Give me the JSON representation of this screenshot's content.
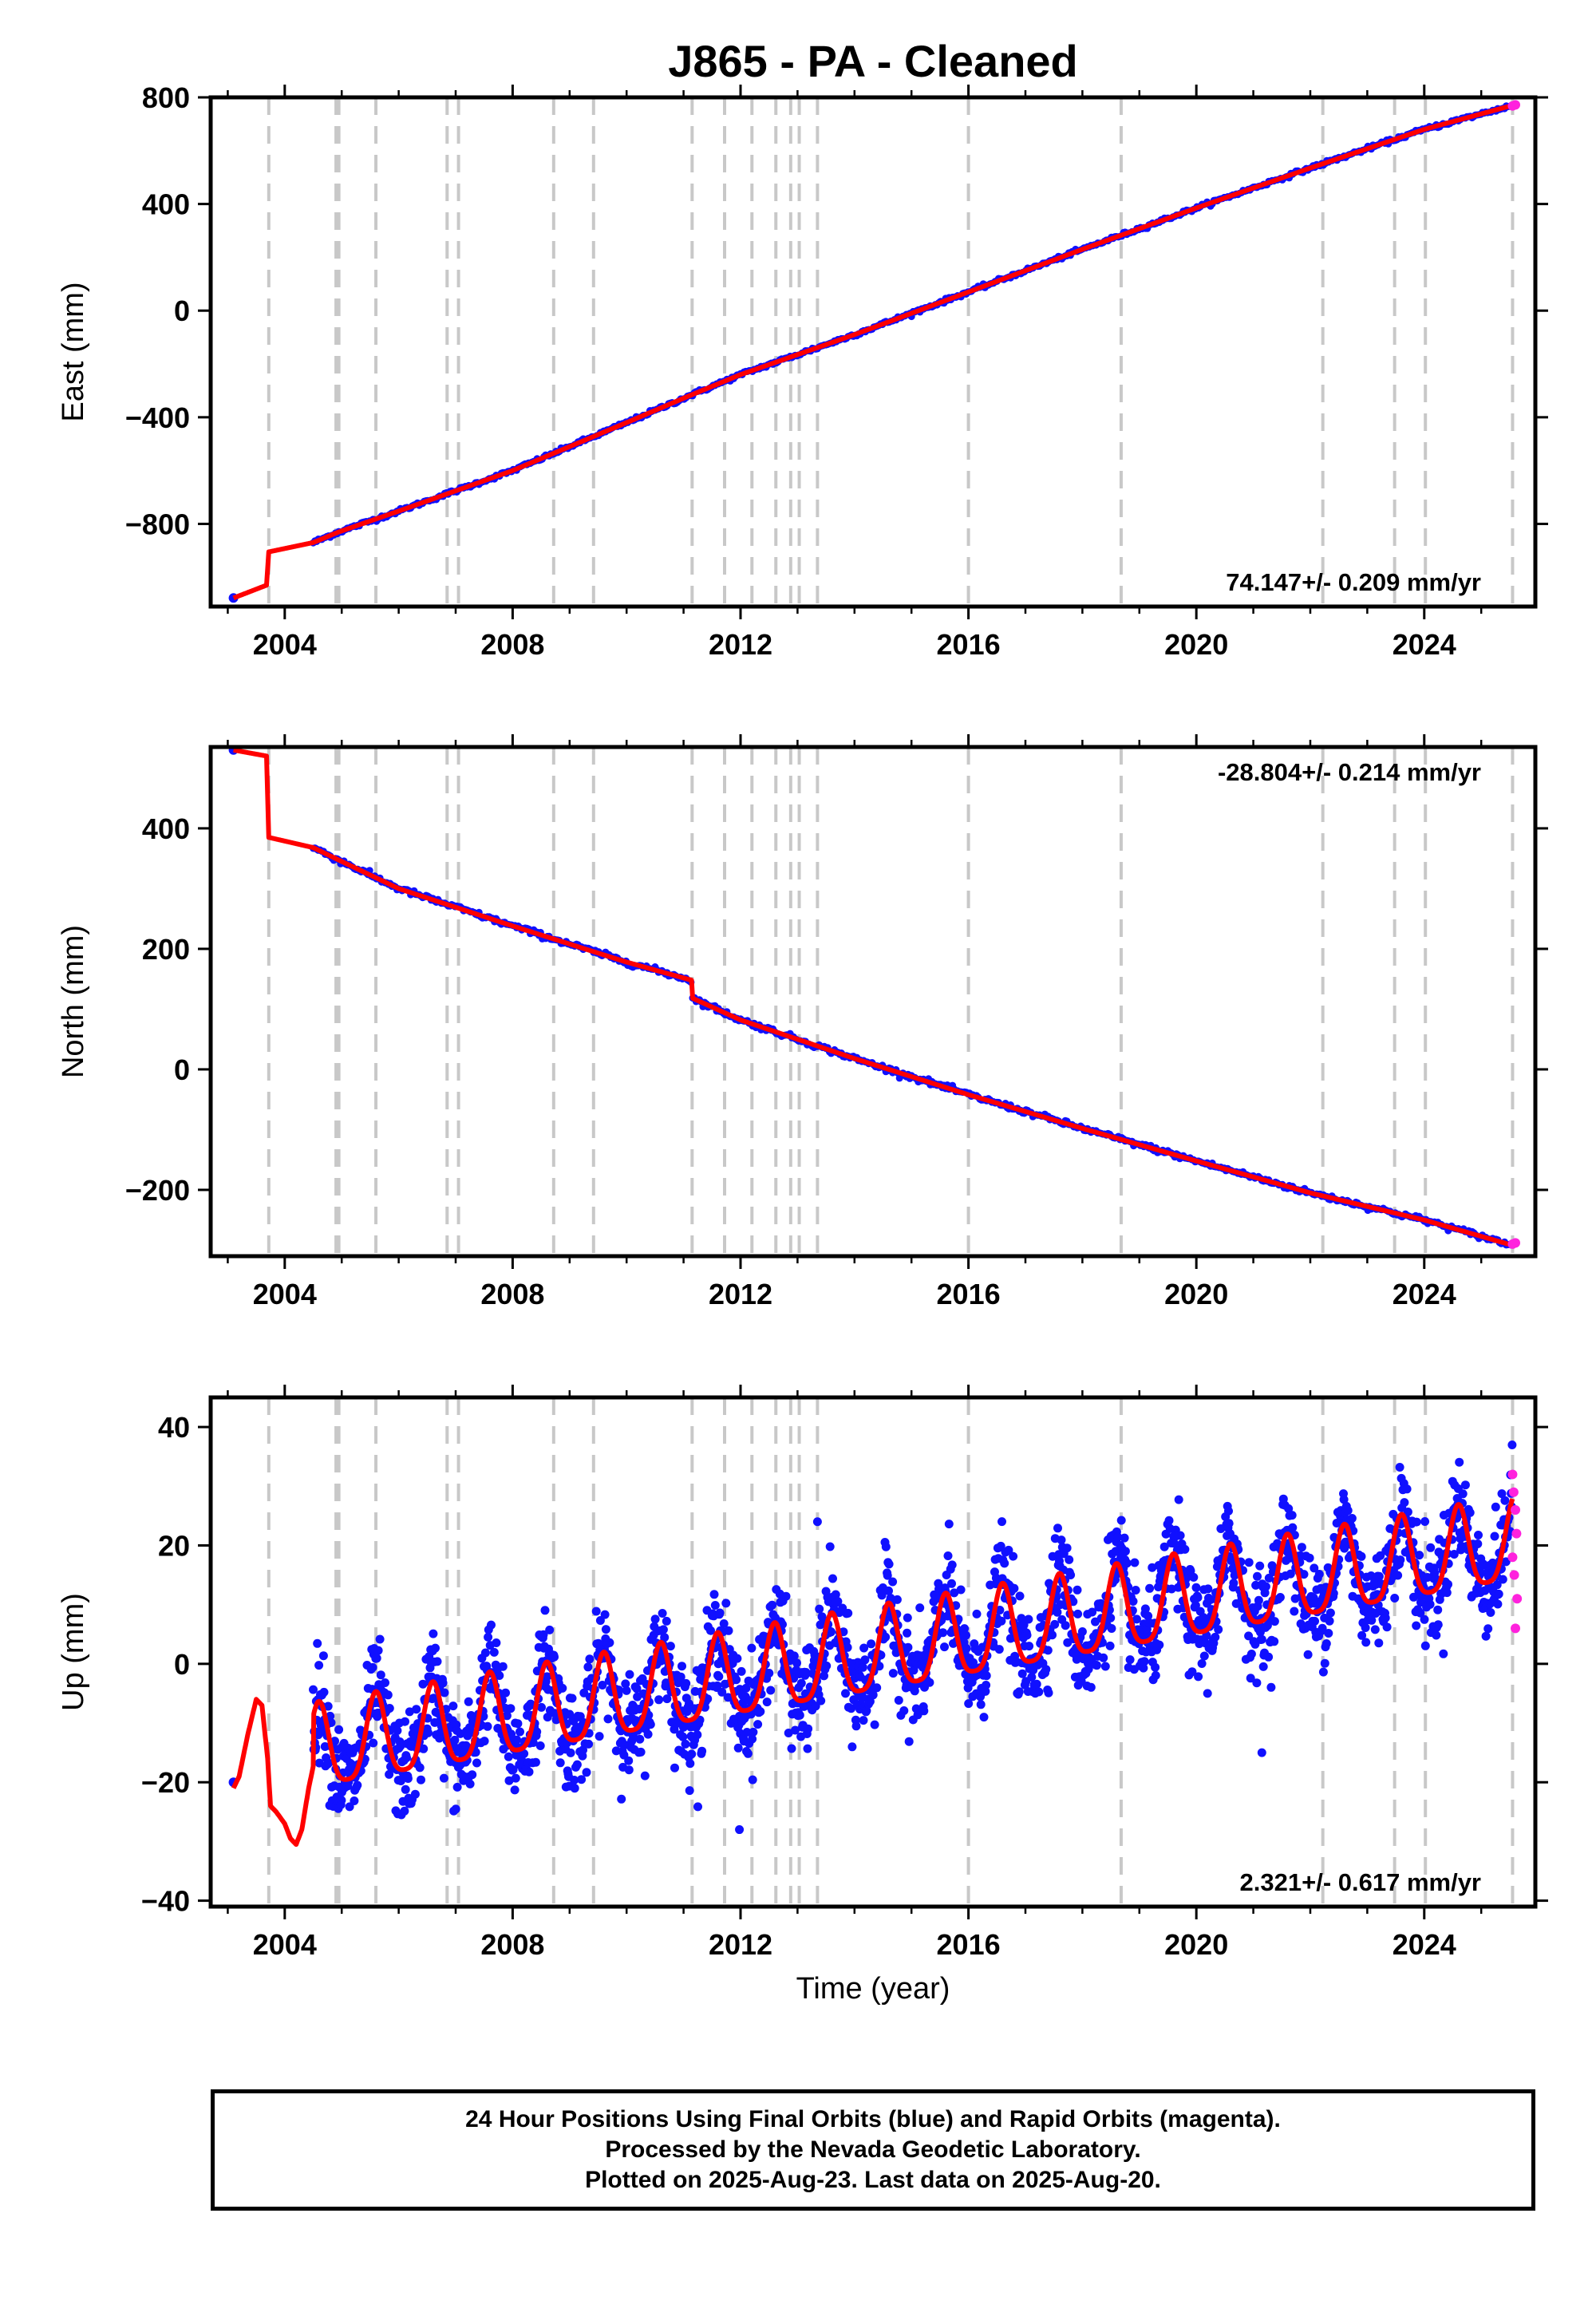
{
  "title": "J865  - PA - Cleaned",
  "colors": {
    "final_orbits": "#1010ff",
    "rapid_orbits": "#ff22dd",
    "model": "#ff0000",
    "dashed_lines": "#c8c8c8",
    "axes": "#000000"
  },
  "x_axis": {
    "label": "Time (year)",
    "range": [
      2002.7,
      2025.95
    ],
    "ticks": [
      2004,
      2008,
      2012,
      2016,
      2020,
      2024
    ],
    "tick_labels": [
      "2004",
      "2008",
      "2012",
      "2016",
      "2020",
      "2024"
    ]
  },
  "event_lines": [
    2003.72,
    2004.9,
    2004.95,
    2005.6,
    2006.85,
    2007.05,
    2008.72,
    2009.42,
    2011.15,
    2011.72,
    2012.2,
    2012.62,
    2012.88,
    2013.03,
    2013.35,
    2016.0,
    2018.68,
    2022.22,
    2023.48,
    2024.02,
    2025.55
  ],
  "chart_data": [
    {
      "type": "scatter",
      "component": "east",
      "ylabel": "East (mm)",
      "ylim": [
        -1110,
        800
      ],
      "yticks": [
        800,
        400,
        0,
        -400,
        -800
      ],
      "ytick_labels": [
        "800",
        "400",
        "0",
        "−400",
        "−800"
      ],
      "rate_text": "74.147+/- 0.209 mm/yr",
      "rate_position": "bottom-right",
      "x": [
        2003.1,
        2003.68,
        2003.72,
        2004.5,
        2004.95,
        2006.0,
        2008.0,
        2010.0,
        2011.15,
        2012.0,
        2014.0,
        2016.0,
        2018.0,
        2020.0,
        2022.0,
        2024.0,
        2025.55
      ],
      "y": [
        -1078,
        -1030,
        -905,
        -870,
        -830,
        -752,
        -600,
        -420,
        -315,
        -240,
        -90,
        70,
        230,
        385,
        535,
        680,
        770
      ],
      "rapid_x": [
        2025.55,
        2025.6
      ],
      "rapid_y": [
        768,
        772
      ],
      "series": [
        {
          "name": "",
          "values": []
        }
      ]
    },
    {
      "type": "scatter",
      "component": "north",
      "ylabel": "North (mm)",
      "ylim": [
        -310,
        535
      ],
      "yticks": [
        400,
        200,
        0,
        -200
      ],
      "ytick_labels": [
        "400",
        "200",
        "0",
        "−200"
      ],
      "rate_text": "-28.804+/- 0.214 mm/yr",
      "rate_position": "top-right",
      "x": [
        2003.1,
        2003.68,
        2003.72,
        2004.5,
        2005.0,
        2006.0,
        2008.0,
        2010.0,
        2011.14,
        2011.16,
        2012.0,
        2014.0,
        2016.0,
        2018.0,
        2020.0,
        2022.0,
        2024.0,
        2025.55
      ],
      "y": [
        530,
        520,
        385,
        368,
        345,
        300,
        238,
        178,
        148,
        118,
        82,
        18,
        -42,
        -98,
        -152,
        -205,
        -250,
        -292
      ],
      "rapid_x": [
        2025.55,
        2025.6
      ],
      "rapid_y": [
        -290,
        -288
      ],
      "series": [
        {
          "name": "",
          "values": []
        }
      ]
    },
    {
      "type": "scatter",
      "component": "up",
      "ylabel": "Up (mm)",
      "ylim": [
        -41,
        45
      ],
      "yticks": [
        40,
        20,
        0,
        -20,
        -40
      ],
      "ytick_labels": [
        "40",
        "20",
        "0",
        "−20",
        "−40"
      ],
      "rate_text": "2.321+/- 0.617 mm/yr",
      "rate_position": "bottom-right",
      "trend": {
        "start_year": 2004.5,
        "end_year": 2025.55,
        "start_mm": -15,
        "end_mm": 20
      },
      "seasonal_amplitude_mm": 7,
      "seasonal_peak_fraction": 0.6,
      "early_model_x": [
        2003.1,
        2003.2,
        2003.35,
        2003.5,
        2003.6,
        2003.7,
        2003.75,
        2003.85,
        2004.0,
        2004.1,
        2004.2,
        2004.3,
        2004.42,
        2004.55
      ],
      "early_model_y": [
        -21,
        -19,
        -12,
        -6,
        -7,
        -16,
        -24,
        -25,
        -27,
        -29.5,
        -30.5,
        -28,
        -21,
        -15
      ],
      "first_point": {
        "x": 2003.1,
        "y": -20
      },
      "outliers_x": [
        2021.15,
        2011.98,
        2013.35
      ],
      "outliers_y": [
        -15,
        -28,
        24
      ],
      "rapid_x": [
        2025.55,
        2025.57,
        2025.6,
        2025.62,
        2025.55,
        2025.58,
        2025.6,
        2025.63
      ],
      "rapid_y": [
        32,
        29,
        26,
        22,
        18,
        15,
        6,
        11
      ],
      "series": [
        {
          "name": "",
          "values": []
        }
      ]
    }
  ],
  "footer": {
    "line1": "24 Hour Positions Using Final Orbits (blue) and Rapid Orbits (magenta).",
    "line2": "Processed by the Nevada Geodetic Laboratory.",
    "line3": "Plotted on 2025-Aug-23. Last data on 2025-Aug-20."
  }
}
